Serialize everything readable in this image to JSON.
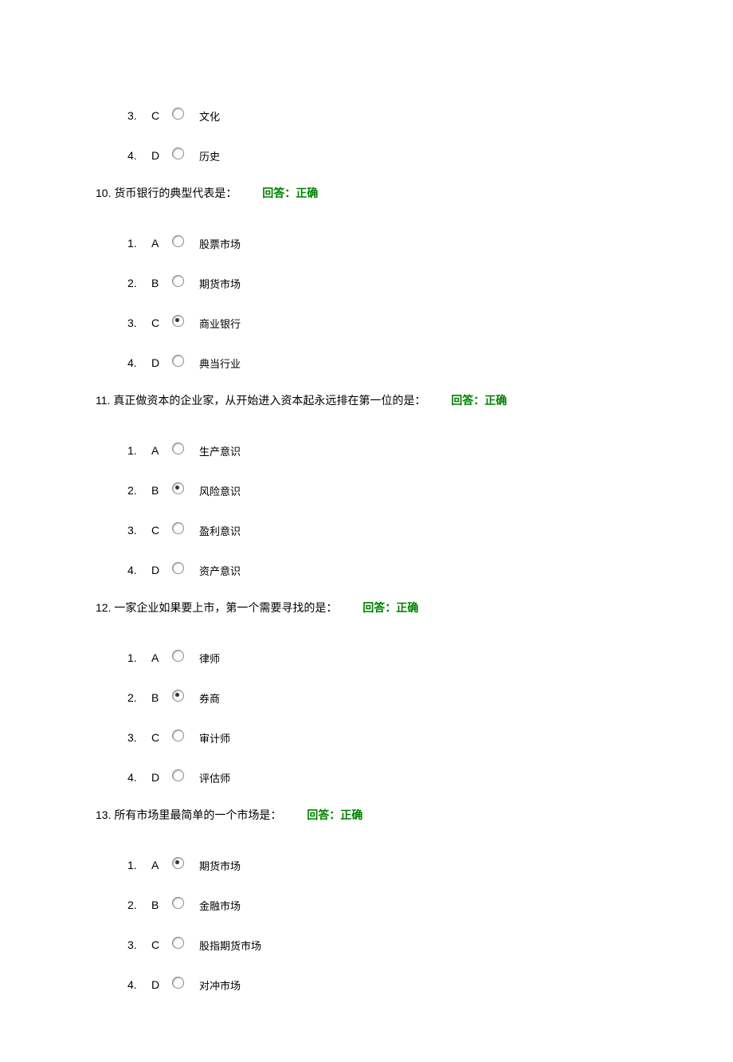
{
  "colors": {
    "text": "#000000",
    "feedback": "#008000",
    "background": "#ffffff"
  },
  "partial_leading": {
    "options": [
      {
        "index": "3.",
        "letter": "C",
        "checked": false,
        "text": "文化"
      },
      {
        "index": "4.",
        "letter": "D",
        "checked": false,
        "text": "历史"
      }
    ]
  },
  "questions": [
    {
      "number": "10.",
      "text": "货币银行的典型代表是：",
      "feedback": "回答：正确",
      "options": [
        {
          "index": "1.",
          "letter": "A",
          "checked": false,
          "text": "股票市场"
        },
        {
          "index": "2.",
          "letter": "B",
          "checked": false,
          "text": "期货市场"
        },
        {
          "index": "3.",
          "letter": "C",
          "checked": true,
          "text": "商业银行"
        },
        {
          "index": "4.",
          "letter": "D",
          "checked": false,
          "text": "典当行业"
        }
      ]
    },
    {
      "number": "11.",
      "text": "真正做资本的企业家，从开始进入资本起永远排在第一位的是：",
      "feedback": "回答：正确",
      "options": [
        {
          "index": "1.",
          "letter": "A",
          "checked": false,
          "text": "生产意识"
        },
        {
          "index": "2.",
          "letter": "B",
          "checked": true,
          "text": "风险意识"
        },
        {
          "index": "3.",
          "letter": "C",
          "checked": false,
          "text": "盈利意识"
        },
        {
          "index": "4.",
          "letter": "D",
          "checked": false,
          "text": "资产意识"
        }
      ]
    },
    {
      "number": "12.",
      "text": "一家企业如果要上市，第一个需要寻找的是：",
      "feedback": "回答：正确",
      "options": [
        {
          "index": "1.",
          "letter": "A",
          "checked": false,
          "text": "律师"
        },
        {
          "index": "2.",
          "letter": "B",
          "checked": true,
          "text": "券商"
        },
        {
          "index": "3.",
          "letter": "C",
          "checked": false,
          "text": "审计师"
        },
        {
          "index": "4.",
          "letter": "D",
          "checked": false,
          "text": "评估师"
        }
      ]
    },
    {
      "number": "13.",
      "text": "所有市场里最简单的一个市场是：",
      "feedback": "回答：正确",
      "options": [
        {
          "index": "1.",
          "letter": "A",
          "checked": true,
          "text": "期货市场"
        },
        {
          "index": "2.",
          "letter": "B",
          "checked": false,
          "text": "金融市场"
        },
        {
          "index": "3.",
          "letter": "C",
          "checked": false,
          "text": "股指期货市场"
        },
        {
          "index": "4.",
          "letter": "D",
          "checked": false,
          "text": "对冲市场"
        }
      ]
    }
  ]
}
